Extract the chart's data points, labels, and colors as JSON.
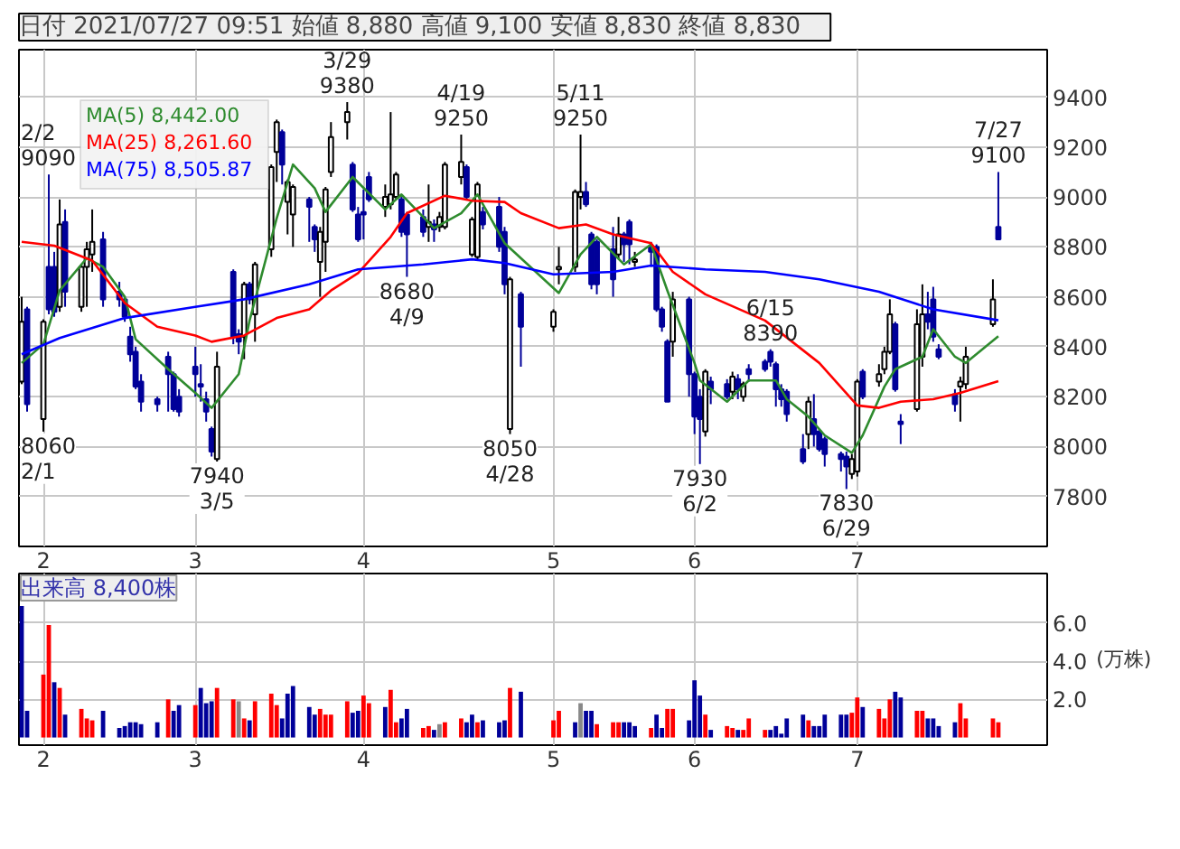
{
  "chart_data": [
    {
      "type": "candlestick",
      "title": "日付 2021/07/27 09:51  始値 8,880  高値 9,100  安値 8,830  終値 8,830",
      "x": [
        "2021-01-28",
        "2021-01-29",
        "2021-02-01",
        "2021-02-02",
        "2021-02-03",
        "2021-02-04",
        "2021-02-05",
        "2021-02-08",
        "2021-02-09",
        "2021-02-10",
        "2021-02-12",
        "2021-02-15",
        "2021-02-16",
        "2021-02-17",
        "2021-02-18",
        "2021-02-19",
        "2021-02-22",
        "2021-02-24",
        "2021-02-25",
        "2021-02-26",
        "2021-03-01",
        "2021-03-02",
        "2021-03-03",
        "2021-03-04",
        "2021-03-05",
        "2021-03-08",
        "2021-03-09",
        "2021-03-10",
        "2021-03-11",
        "2021-03-12",
        "2021-03-15",
        "2021-03-16",
        "2021-03-17",
        "2021-03-18",
        "2021-03-19",
        "2021-03-22",
        "2021-03-23",
        "2021-03-24",
        "2021-03-25",
        "2021-03-26",
        "2021-03-29",
        "2021-03-30",
        "2021-03-31",
        "2021-04-01",
        "2021-04-02",
        "2021-04-05",
        "2021-04-06",
        "2021-04-07",
        "2021-04-08",
        "2021-04-09",
        "2021-04-12",
        "2021-04-13",
        "2021-04-14",
        "2021-04-15",
        "2021-04-16",
        "2021-04-19",
        "2021-04-20",
        "2021-04-21",
        "2021-04-22",
        "2021-04-23",
        "2021-04-26",
        "2021-04-27",
        "2021-04-28",
        "2021-04-30",
        "2021-05-06",
        "2021-05-07",
        "2021-05-10",
        "2021-05-11",
        "2021-05-12",
        "2021-05-13",
        "2021-05-14",
        "2021-05-17",
        "2021-05-18",
        "2021-05-19",
        "2021-05-20",
        "2021-05-21",
        "2021-05-24",
        "2021-05-25",
        "2021-05-26",
        "2021-05-27",
        "2021-05-28",
        "2021-05-31",
        "2021-06-01",
        "2021-06-02",
        "2021-06-03",
        "2021-06-04",
        "2021-06-07",
        "2021-06-08",
        "2021-06-09",
        "2021-06-10",
        "2021-06-11",
        "2021-06-14",
        "2021-06-15",
        "2021-06-16",
        "2021-06-17",
        "2021-06-18",
        "2021-06-21",
        "2021-06-22",
        "2021-06-23",
        "2021-06-24",
        "2021-06-25",
        "2021-06-28",
        "2021-06-29",
        "2021-06-30",
        "2021-07-01",
        "2021-07-02",
        "2021-07-05",
        "2021-07-06",
        "2021-07-07",
        "2021-07-08",
        "2021-07-09",
        "2021-07-12",
        "2021-07-13",
        "2021-07-14",
        "2021-07-15",
        "2021-07-16",
        "2021-07-19",
        "2021-07-20",
        "2021-07-21",
        "2021-07-26",
        "2021-07-27"
      ],
      "ohlc": [
        [
          8260,
          8600,
          8250,
          8500
        ],
        [
          8550,
          8560,
          8140,
          8170
        ],
        [
          8110,
          8510,
          8060,
          8500
        ],
        [
          8720,
          9090,
          8530,
          8550
        ],
        [
          8720,
          8780,
          8520,
          8540
        ],
        [
          8560,
          8990,
          8540,
          8890
        ],
        [
          8900,
          8950,
          8560,
          8620
        ],
        [
          8560,
          8730,
          8540,
          8720
        ],
        [
          8720,
          8820,
          8560,
          8790
        ],
        [
          8770,
          8950,
          8700,
          8820
        ],
        [
          8830,
          8860,
          8560,
          8590
        ],
        [
          8620,
          8660,
          8560,
          8590
        ],
        [
          8590,
          8600,
          8500,
          8520
        ],
        [
          8440,
          8480,
          8340,
          8370
        ],
        [
          8380,
          8400,
          8230,
          8240
        ],
        [
          8260,
          8290,
          8140,
          8180
        ],
        [
          8190,
          8200,
          8140,
          8170
        ],
        [
          8360,
          8380,
          8140,
          8290
        ],
        [
          8290,
          8300,
          8140,
          8150
        ],
        [
          8200,
          8230,
          8120,
          8140
        ],
        [
          8320,
          8400,
          8200,
          8290
        ],
        [
          8250,
          8330,
          8180,
          8240
        ],
        [
          8190,
          8220,
          8100,
          8140
        ],
        [
          8070,
          8080,
          7960,
          7980
        ],
        [
          7950,
          8380,
          7940,
          8320
        ],
        [
          8700,
          8710,
          8410,
          8440
        ],
        [
          8450,
          8470,
          8370,
          8420
        ],
        [
          8440,
          8660,
          8350,
          8650
        ],
        [
          8650,
          8660,
          8570,
          8590
        ],
        [
          8530,
          8740,
          8420,
          8730
        ],
        [
          8790,
          9130,
          8760,
          9120
        ],
        [
          9180,
          9310,
          9060,
          9300
        ],
        [
          9260,
          9270,
          9050,
          9130
        ],
        [
          8980,
          9070,
          8850,
          9060
        ],
        [
          8930,
          9050,
          8800,
          9040
        ],
        [
          8990,
          9000,
          8820,
          8960
        ],
        [
          8880,
          8890,
          8780,
          8830
        ],
        [
          8740,
          8880,
          8600,
          8860
        ],
        [
          8820,
          9040,
          8700,
          9030
        ],
        [
          9100,
          9300,
          9080,
          9240
        ],
        [
          9300,
          9380,
          9230,
          9340
        ],
        [
          9130,
          9140,
          8940,
          8950
        ],
        [
          8930,
          8960,
          8820,
          8830
        ],
        [
          8940,
          9030,
          8830,
          8930
        ],
        [
          9080,
          9100,
          8980,
          8990
        ],
        [
          8960,
          9050,
          8920,
          9000
        ],
        [
          8970,
          9340,
          8950,
          9010
        ],
        [
          9000,
          9100,
          8990,
          9090
        ],
        [
          8990,
          9000,
          8840,
          8860
        ],
        [
          8930,
          8940,
          8680,
          8850
        ],
        [
          8920,
          8950,
          8840,
          8860
        ],
        [
          8880,
          9050,
          8820,
          8900
        ],
        [
          8890,
          8910,
          8820,
          8870
        ],
        [
          8880,
          8940,
          8860,
          8920
        ],
        [
          8880,
          9140,
          8870,
          9130
        ],
        [
          9080,
          9250,
          9050,
          9140
        ],
        [
          9120,
          9130,
          8990,
          9000
        ],
        [
          8770,
          8920,
          8760,
          8910
        ],
        [
          8760,
          9060,
          8750,
          9050
        ],
        [
          8940,
          8960,
          8870,
          8890
        ],
        [
          8960,
          9000,
          8780,
          8800
        ],
        [
          8860,
          8880,
          8610,
          8650
        ],
        [
          8070,
          8680,
          8050,
          8670
        ],
        [
          8610,
          8620,
          8320,
          8480
        ],
        [
          8480,
          8550,
          8460,
          8540
        ],
        [
          8710,
          8800,
          8650,
          8720
        ],
        [
          8720,
          9030,
          8700,
          9020
        ],
        [
          9000,
          9250,
          8950,
          9020
        ],
        [
          9020,
          9060,
          8960,
          8970
        ],
        [
          8850,
          8860,
          8630,
          8650
        ],
        [
          8820,
          8830,
          8610,
          8650
        ],
        [
          8790,
          8880,
          8600,
          8670
        ],
        [
          8770,
          8920,
          8750,
          8850
        ],
        [
          8850,
          8860,
          8740,
          8810
        ],
        [
          8900,
          8910,
          8730,
          8810
        ],
        [
          8740,
          8780,
          8720,
          8750
        ],
        [
          8800,
          8820,
          8720,
          8780
        ],
        [
          8800,
          8810,
          8540,
          8550
        ],
        [
          8550,
          8560,
          8460,
          8480
        ],
        [
          8420,
          8430,
          8180,
          8180
        ],
        [
          8420,
          8620,
          8360,
          8590
        ],
        [
          8590,
          8600,
          8200,
          8290
        ],
        [
          8290,
          8300,
          8050,
          8120
        ],
        [
          8200,
          8230,
          7930,
          8110
        ],
        [
          8060,
          8310,
          8040,
          8300
        ],
        [
          8260,
          8280,
          8170,
          8230
        ],
        [
          8250,
          8270,
          8190,
          8200
        ],
        [
          8220,
          8300,
          8190,
          8280
        ],
        [
          8270,
          8290,
          8190,
          8230
        ],
        [
          8200,
          8260,
          8180,
          8250
        ],
        [
          8310,
          8330,
          8260,
          8290
        ],
        [
          8340,
          8350,
          8300,
          8310
        ],
        [
          8380,
          8390,
          8320,
          8340
        ],
        [
          8330,
          8340,
          8160,
          8230
        ],
        [
          8230,
          8250,
          8160,
          8190
        ],
        [
          8220,
          8230,
          8100,
          8130
        ],
        [
          7990,
          8050,
          7930,
          7940
        ],
        [
          8050,
          8200,
          7990,
          8180
        ],
        [
          8110,
          8210,
          8000,
          8050
        ],
        [
          8060,
          8070,
          7980,
          7990
        ],
        [
          8030,
          8040,
          7920,
          7970
        ],
        [
          7970,
          7980,
          7900,
          7950
        ],
        [
          7960,
          7980,
          7830,
          7920
        ],
        [
          7890,
          7970,
          7870,
          7950
        ],
        [
          7900,
          8270,
          7880,
          8260
        ],
        [
          8300,
          8310,
          8190,
          8200
        ],
        [
          8260,
          8330,
          8240,
          8290
        ],
        [
          8310,
          8400,
          8290,
          8380
        ],
        [
          8380,
          8590,
          8370,
          8530
        ],
        [
          8490,
          8500,
          8220,
          8230
        ],
        [
          8100,
          8130,
          8010,
          8090
        ],
        [
          8150,
          8550,
          8140,
          8490
        ],
        [
          8360,
          8650,
          8320,
          8530
        ],
        [
          8530,
          8620,
          8470,
          8500
        ],
        [
          8590,
          8640,
          8420,
          8440
        ],
        [
          8390,
          8410,
          8350,
          8360
        ],
        [
          8210,
          8230,
          8140,
          8170
        ],
        [
          8240,
          8280,
          8100,
          8260
        ],
        [
          8250,
          8400,
          8230,
          8360
        ],
        [
          8490,
          8670,
          8480,
          8590
        ],
        [
          8880,
          9100,
          8830,
          8830
        ]
      ],
      "series": [
        {
          "name": "MA(5) 8,442.00",
          "type": "line",
          "color": "#2e8b2e",
          "x": [
            "2021-01-28",
            "2021-02-01",
            "2021-02-04",
            "2021-02-09",
            "2021-02-12",
            "2021-02-16",
            "2021-02-18",
            "2021-02-24",
            "2021-03-01",
            "2021-03-04",
            "2021-03-09",
            "2021-03-11",
            "2021-03-16",
            "2021-03-19",
            "2021-03-23",
            "2021-03-25",
            "2021-03-30",
            "2021-04-05",
            "2021-04-08",
            "2021-04-14",
            "2021-04-19",
            "2021-04-22",
            "2021-04-27",
            "2021-05-07",
            "2021-05-11",
            "2021-05-14",
            "2021-05-19",
            "2021-05-24",
            "2021-05-27",
            "2021-06-01",
            "2021-06-02",
            "2021-06-07",
            "2021-06-11",
            "2021-06-16",
            "2021-06-18",
            "2021-06-22",
            "2021-06-25",
            "2021-06-30",
            "2021-07-02",
            "2021-07-06",
            "2021-07-08",
            "2021-07-13",
            "2021-07-15",
            "2021-07-19",
            "2021-07-21",
            "2021-07-27"
          ],
          "values": [
            8335,
            8410,
            8625,
            8755,
            8720,
            8600,
            8430,
            8310,
            8215,
            8155,
            8290,
            8505,
            8915,
            9130,
            9035,
            8940,
            9080,
            8950,
            9010,
            8875,
            8935,
            9010,
            8815,
            8615,
            8770,
            8840,
            8730,
            8810,
            8625,
            8335,
            8265,
            8180,
            8265,
            8265,
            8190,
            8120,
            8045,
            7975,
            8045,
            8240,
            8310,
            8360,
            8470,
            8360,
            8335,
            8442
          ]
        },
        {
          "name": "MA(25) 8,261.60",
          "type": "line",
          "color": "#ff0000",
          "x": [
            "2021-01-28",
            "2021-02-03",
            "2021-02-10",
            "2021-02-16",
            "2021-02-22",
            "2021-03-01",
            "2021-03-04",
            "2021-03-10",
            "2021-03-16",
            "2021-03-22",
            "2021-03-26",
            "2021-03-31",
            "2021-04-06",
            "2021-04-09",
            "2021-04-16",
            "2021-04-21",
            "2021-04-27",
            "2021-04-30",
            "2021-05-07",
            "2021-05-12",
            "2021-05-17",
            "2021-05-24",
            "2021-05-28",
            "2021-06-03",
            "2021-06-14",
            "2021-06-24",
            "2021-07-01",
            "2021-07-05",
            "2021-07-09",
            "2021-07-15",
            "2021-07-20",
            "2021-07-27"
          ],
          "values": [
            8820,
            8805,
            8745,
            8575,
            8480,
            8445,
            8420,
            8445,
            8515,
            8550,
            8625,
            8695,
            8840,
            8935,
            9005,
            8985,
            8980,
            8935,
            8875,
            8890,
            8850,
            8815,
            8700,
            8610,
            8505,
            8335,
            8165,
            8155,
            8180,
            8190,
            8215,
            8262
          ]
        },
        {
          "name": "MA(75) 8,505.87",
          "type": "line",
          "color": "#0000ff",
          "x": [
            "2021-01-28",
            "2021-02-04",
            "2021-02-16",
            "2021-03-01",
            "2021-03-10",
            "2021-03-22",
            "2021-03-31",
            "2021-04-12",
            "2021-04-21",
            "2021-04-27",
            "2021-05-06",
            "2021-05-17",
            "2021-05-24",
            "2021-06-03",
            "2021-06-14",
            "2021-06-24",
            "2021-07-05",
            "2021-07-15",
            "2021-07-27"
          ],
          "values": [
            8370,
            8435,
            8515,
            8560,
            8590,
            8650,
            8710,
            8730,
            8750,
            8735,
            8690,
            8700,
            8725,
            8710,
            8700,
            8670,
            8620,
            8550,
            8506
          ]
        }
      ],
      "xlim": [
        "2021-01-28",
        "2021-08-05"
      ],
      "xticks": [
        {
          "value": "2021-02-01",
          "label": "2"
        },
        {
          "value": "2021-03-01",
          "label": "3"
        },
        {
          "value": "2021-04-01",
          "label": "4"
        },
        {
          "value": "2021-05-06",
          "label": "5"
        },
        {
          "value": "2021-06-01",
          "label": "6"
        },
        {
          "value": "2021-07-01",
          "label": "7"
        }
      ],
      "ylim": [
        7600,
        9590
      ],
      "yticks": [
        7800,
        8000,
        8200,
        8400,
        8600,
        8800,
        9000,
        9200,
        9400
      ],
      "grid": true,
      "legend": "top left",
      "annotations": [
        {
          "text": "2/2\n9090",
          "x": "2021-02-02",
          "y": 9090
        },
        {
          "text": "8060\n2/1",
          "x": "2021-02-01",
          "y": 8060
        },
        {
          "text": "7940\n3/5",
          "x": "2021-03-05",
          "y": 7940
        },
        {
          "text": "3/29\n9380",
          "x": "2021-03-29",
          "y": 9380
        },
        {
          "text": "8680\n4/9",
          "x": "2021-04-09",
          "y": 8680
        },
        {
          "text": "4/19\n9250",
          "x": "2021-04-19",
          "y": 9250
        },
        {
          "text": "8050\n4/28",
          "x": "2021-04-28",
          "y": 8050
        },
        {
          "text": "5/11\n9250",
          "x": "2021-05-11",
          "y": 9250
        },
        {
          "text": "7930\n6/2",
          "x": "2021-06-02",
          "y": 7930
        },
        {
          "text": "6/15\n8390",
          "x": "2021-06-15",
          "y": 8390
        },
        {
          "text": "7830\n6/29",
          "x": "2021-06-29",
          "y": 7830
        },
        {
          "text": "7/27\n9100",
          "x": "2021-07-27",
          "y": 9100
        }
      ]
    },
    {
      "type": "bar",
      "title": "出来高 8,400株",
      "ylabel": "(万株)",
      "x": [
        "2021-01-28",
        "2021-01-29",
        "2021-02-01",
        "2021-02-02",
        "2021-02-03",
        "2021-02-04",
        "2021-02-05",
        "2021-02-08",
        "2021-02-09",
        "2021-02-10",
        "2021-02-12",
        "2021-02-15",
        "2021-02-16",
        "2021-02-17",
        "2021-02-18",
        "2021-02-19",
        "2021-02-22",
        "2021-02-24",
        "2021-02-25",
        "2021-02-26",
        "2021-03-01",
        "2021-03-02",
        "2021-03-03",
        "2021-03-04",
        "2021-03-05",
        "2021-03-08",
        "2021-03-09",
        "2021-03-10",
        "2021-03-11",
        "2021-03-12",
        "2021-03-15",
        "2021-03-16",
        "2021-03-17",
        "2021-03-18",
        "2021-03-19",
        "2021-03-22",
        "2021-03-23",
        "2021-03-24",
        "2021-03-25",
        "2021-03-26",
        "2021-03-29",
        "2021-03-30",
        "2021-03-31",
        "2021-04-01",
        "2021-04-02",
        "2021-04-05",
        "2021-04-06",
        "2021-04-07",
        "2021-04-08",
        "2021-04-09",
        "2021-04-12",
        "2021-04-13",
        "2021-04-14",
        "2021-04-15",
        "2021-04-16",
        "2021-04-19",
        "2021-04-20",
        "2021-04-21",
        "2021-04-22",
        "2021-04-23",
        "2021-04-26",
        "2021-04-27",
        "2021-04-28",
        "2021-04-30",
        "2021-05-06",
        "2021-05-07",
        "2021-05-10",
        "2021-05-11",
        "2021-05-12",
        "2021-05-13",
        "2021-05-14",
        "2021-05-17",
        "2021-05-18",
        "2021-05-19",
        "2021-05-20",
        "2021-05-21",
        "2021-05-24",
        "2021-05-25",
        "2021-05-26",
        "2021-05-27",
        "2021-05-28",
        "2021-05-31",
        "2021-06-01",
        "2021-06-02",
        "2021-06-03",
        "2021-06-04",
        "2021-06-07",
        "2021-06-08",
        "2021-06-09",
        "2021-06-10",
        "2021-06-11",
        "2021-06-14",
        "2021-06-15",
        "2021-06-16",
        "2021-06-17",
        "2021-06-18",
        "2021-06-21",
        "2021-06-22",
        "2021-06-23",
        "2021-06-24",
        "2021-06-25",
        "2021-06-28",
        "2021-06-29",
        "2021-06-30",
        "2021-07-01",
        "2021-07-02",
        "2021-07-05",
        "2021-07-06",
        "2021-07-07",
        "2021-07-08",
        "2021-07-09",
        "2021-07-12",
        "2021-07-13",
        "2021-07-14",
        "2021-07-15",
        "2021-07-16",
        "2021-07-19",
        "2021-07-20",
        "2021-07-21",
        "2021-07-26",
        "2021-07-27"
      ],
      "values": [
        6.9,
        1.4,
        3.3,
        5.9,
        2.9,
        2.6,
        1.2,
        1.5,
        1.0,
        0.9,
        1.4,
        0.5,
        0.6,
        0.8,
        0.8,
        0.7,
        0.8,
        2.0,
        1.4,
        1.7,
        1.7,
        2.6,
        1.8,
        1.9,
        2.6,
        2.0,
        1.9,
        1.0,
        0.9,
        1.9,
        2.3,
        1.7,
        1.0,
        2.3,
        2.7,
        1.6,
        1.2,
        1.5,
        1.2,
        1.2,
        1.9,
        1.3,
        1.4,
        2.2,
        1.8,
        1.6,
        2.5,
        0.8,
        1.0,
        1.5,
        0.5,
        0.6,
        0.4,
        0.7,
        0.8,
        1.0,
        0.8,
        1.2,
        0.8,
        0.9,
        0.8,
        0.9,
        2.6,
        2.4,
        0.9,
        1.4,
        0.8,
        1.8,
        1.4,
        1.4,
        0.7,
        0.8,
        0.8,
        0.8,
        0.8,
        0.6,
        0.5,
        1.2,
        0.5,
        1.5,
        1.5,
        0.9,
        3.0,
        2.2,
        1.2,
        0.4,
        0.6,
        0.5,
        0.4,
        0.4,
        1.0,
        0.4,
        0.4,
        0.6,
        0.2,
        1.0,
        1.2,
        0.9,
        0.6,
        0.6,
        1.2,
        1.2,
        1.2,
        1.3,
        2.1,
        1.6,
        1.5,
        1.0,
        2.0,
        2.4,
        2.1,
        1.4,
        1.4,
        1.0,
        1.0,
        0.6,
        0.8,
        1.8,
        1.0,
        1.0,
        0.8
      ],
      "colors": [
        "#000099",
        "#000099",
        "#ff0000",
        "#ff0000",
        "#000099",
        "#ff0000",
        "#000099",
        "#ff0000",
        "#ff0000",
        "#ff0000",
        "#000099",
        "#000099",
        "#000099",
        "#000099",
        "#000099",
        "#000099",
        "#000099",
        "#ff0000",
        "#000099",
        "#000099",
        "#ff0000",
        "#000099",
        "#000099",
        "#000099",
        "#ff0000",
        "#ff0000",
        "#888888",
        "#ff0000",
        "#000099",
        "#ff0000",
        "#ff0000",
        "#ff0000",
        "#000099",
        "#000099",
        "#000099",
        "#000099",
        "#000099",
        "#ff0000",
        "#ff0000",
        "#ff0000",
        "#ff0000",
        "#000099",
        "#000099",
        "#ff0000",
        "#ff0000",
        "#000099",
        "#ff0000",
        "#ff0000",
        "#000099",
        "#000099",
        "#ff0000",
        "#ff0000",
        "#000099",
        "#888888",
        "#ff0000",
        "#ff0000",
        "#000099",
        "#000099",
        "#ff0000",
        "#000099",
        "#000099",
        "#000099",
        "#ff0000",
        "#000099",
        "#ff0000",
        "#ff0000",
        "#000099",
        "#888888",
        "#000099",
        "#000099",
        "#ff0000",
        "#ff0000",
        "#ff0000",
        "#000099",
        "#000099",
        "#000099",
        "#ff0000",
        "#000099",
        "#000099",
        "#ff0000",
        "#ff0000",
        "#000099",
        "#000099",
        "#000099",
        "#ff0000",
        "#000099",
        "#ff0000",
        "#ff0000",
        "#000099",
        "#ff0000",
        "#ff0000",
        "#ff0000",
        "#000099",
        "#000099",
        "#000099",
        "#000099",
        "#000099",
        "#ff0000",
        "#000099",
        "#000099",
        "#000099",
        "#000099",
        "#000099",
        "#ff0000",
        "#ff0000",
        "#000099",
        "#ff0000",
        "#ff0000",
        "#ff0000",
        "#000099",
        "#000099",
        "#ff0000",
        "#ff0000",
        "#000099",
        "#000099",
        "#000099",
        "#000099",
        "#ff0000",
        "#ff0000",
        "#ff0000",
        "#ff0000"
      ],
      "xlim": [
        "2021-01-28",
        "2021-08-05"
      ],
      "xticks": [
        {
          "value": "2021-02-01",
          "label": "2"
        },
        {
          "value": "2021-03-01",
          "label": "3"
        },
        {
          "value": "2021-04-01",
          "label": "4"
        },
        {
          "value": "2021-05-06",
          "label": "5"
        },
        {
          "value": "2021-06-01",
          "label": "6"
        },
        {
          "value": "2021-07-01",
          "label": "7"
        }
      ],
      "ylim": [
        -0.4,
        8.6
      ],
      "yticks": [
        {
          "value": 2,
          "label": "2.0"
        },
        {
          "value": 4,
          "label": "4.0"
        },
        {
          "value": 6,
          "label": "6.0"
        }
      ],
      "grid": true
    }
  ]
}
